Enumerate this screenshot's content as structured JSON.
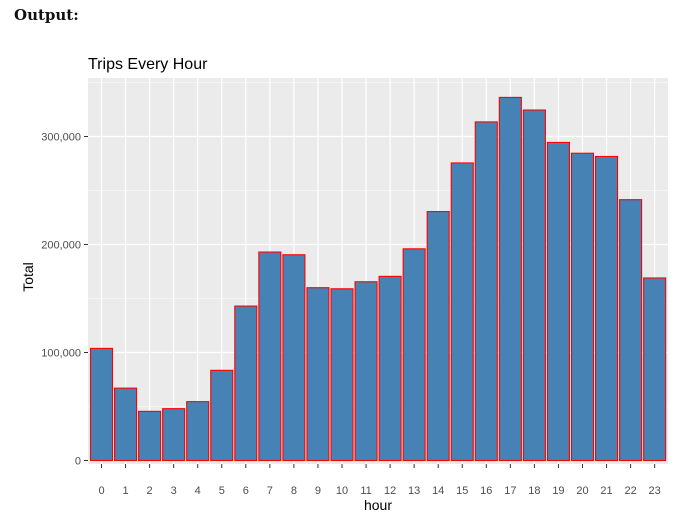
{
  "header": {
    "output_label": "Output:"
  },
  "chart_data": {
    "type": "bar",
    "title": "Trips Every Hour",
    "xlabel": "hour",
    "ylabel": "Total",
    "categories": [
      "0",
      "1",
      "2",
      "3",
      "4",
      "5",
      "6",
      "7",
      "8",
      "9",
      "10",
      "11",
      "12",
      "13",
      "14",
      "15",
      "16",
      "17",
      "18",
      "19",
      "20",
      "21",
      "22",
      "23"
    ],
    "values": [
      103800,
      67000,
      45500,
      48000,
      54500,
      83500,
      143000,
      193000,
      190500,
      160000,
      159000,
      165500,
      170500,
      196000,
      230500,
      275500,
      313500,
      336200,
      324500,
      294500,
      284500,
      281500,
      241500,
      169000
    ],
    "ylim": [
      0,
      350000
    ],
    "yticks": [
      0,
      100000,
      200000,
      300000
    ],
    "ytick_labels": [
      "0",
      "100,000",
      "200,000",
      "300,000"
    ],
    "grid": true,
    "colors": {
      "bar_fill": "#4682b4",
      "bar_stroke": "#ff0000",
      "panel_bg": "#ebebeb",
      "grid": "#ffffff"
    }
  }
}
